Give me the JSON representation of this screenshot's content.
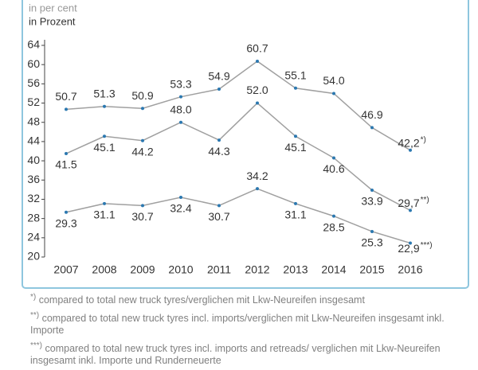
{
  "chart_data": {
    "type": "line",
    "subtitle": "in per cent",
    "subtitle_de": "in Prozent",
    "categories": [
      "2007",
      "2008",
      "2009",
      "2010",
      "2011",
      "2012",
      "2013",
      "2014",
      "2015",
      "2016"
    ],
    "ylim": [
      20,
      64
    ],
    "yticks": [
      20,
      24,
      28,
      32,
      36,
      40,
      44,
      48,
      52,
      56,
      60,
      64
    ],
    "grid": false,
    "line_color": "#a0a0a0",
    "marker_color": "#2b78b0",
    "series": [
      {
        "values": [
          50.7,
          51.3,
          50.9,
          53.3,
          54.9,
          60.7,
          55.1,
          54.0,
          46.9,
          42.2
        ],
        "value_labels": [
          "50.7",
          "51.3",
          "50.9",
          "53.3",
          "54.9",
          "60.7",
          "55.1",
          "54.0",
          "46.9",
          "42,2"
        ],
        "marker": "*)"
      },
      {
        "values": [
          41.5,
          45.1,
          44.2,
          48.0,
          44.3,
          52.0,
          45.1,
          40.6,
          33.9,
          29.7
        ],
        "value_labels": [
          "41.5",
          "45.1",
          "44.2",
          "48.0",
          "44.3",
          "52.0",
          "45.1",
          "40.6",
          "33.9",
          "29,7"
        ],
        "marker": "**)"
      },
      {
        "values": [
          29.3,
          31.1,
          30.7,
          32.4,
          30.7,
          34.2,
          31.1,
          28.5,
          25.3,
          22.9
        ],
        "value_labels": [
          "29.3",
          "31.1",
          "30.7",
          "32.4",
          "30.7",
          "34.2",
          "31.1",
          "28.5",
          "25.3",
          "22,9"
        ],
        "marker": "***)"
      }
    ],
    "footnotes": [
      {
        "marker": "*)",
        "text": "compared to total new truck tyres/verglichen mit Lkw-Neureifen insgesamt"
      },
      {
        "marker": "**)",
        "text": "compared to total new truck tyres incl. imports/verglichen mit Lkw-Neureifen insgesamt inkl. Importe"
      },
      {
        "marker": "***)",
        "text": "compared to total new truck tyres incl. imports and retreads/ verglichen mit Lkw-Neureifen insgesamt inkl. Importe und Runderneuerte"
      }
    ]
  }
}
